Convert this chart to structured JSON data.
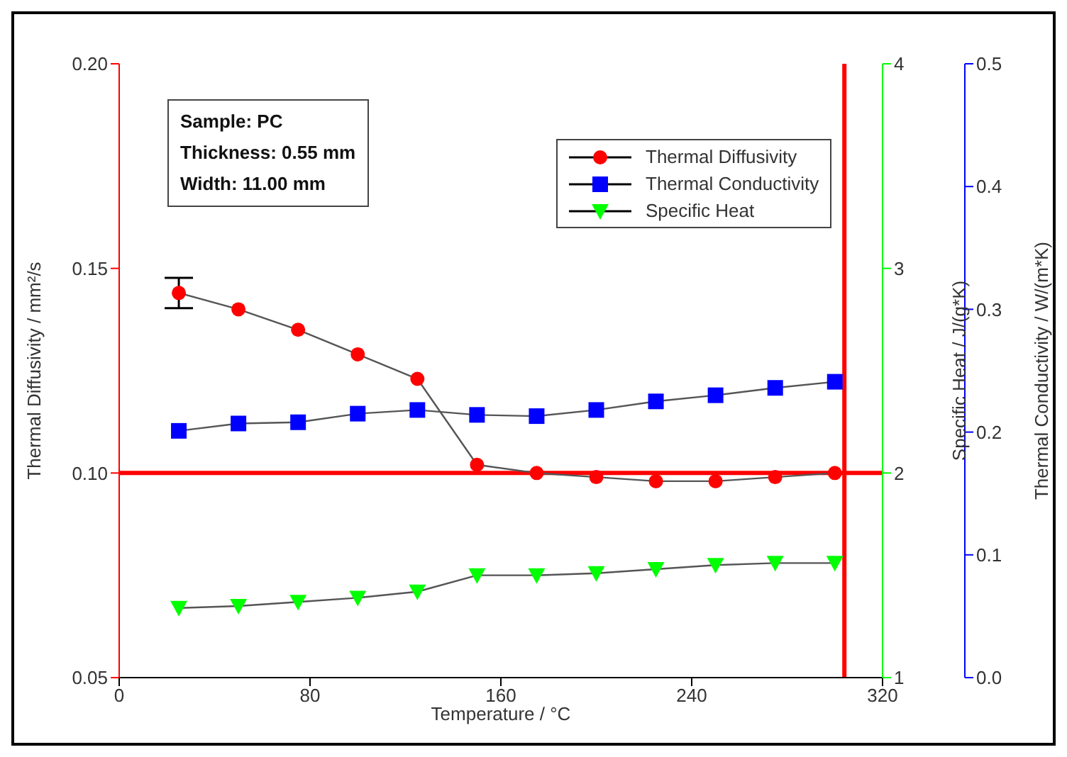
{
  "chart_data": {
    "type": "line",
    "xlabel": "Temperature / °C",
    "ylabel": "Thermal Diffusivity / mm²/s",
    "y2label": "Specific Heat / J/(g*K)",
    "y3label": "Thermal Conductivity / W/(m*K)",
    "x": [
      25,
      50,
      75,
      100,
      125,
      150,
      175,
      200,
      225,
      250,
      275,
      300
    ],
    "xlim": [
      0,
      320
    ],
    "xticks": [
      0,
      80,
      160,
      240,
      320
    ],
    "ylim": [
      0.05,
      0.2
    ],
    "yticks": [
      {
        "value": 0.05,
        "label": "0.05"
      },
      {
        "value": 0.1,
        "label": "0.10"
      },
      {
        "value": 0.15,
        "label": "0.15"
      },
      {
        "value": 0.2,
        "label": "0.20"
      }
    ],
    "y2lim": [
      1,
      4
    ],
    "y2ticks": [
      1,
      2,
      3,
      4
    ],
    "y3lim": [
      0,
      0.5
    ],
    "y3ticks": [
      {
        "value": 0,
        "label": "0.0"
      },
      0.1,
      0.2,
      0.3,
      0.4,
      0.5
    ],
    "series": [
      {
        "name": "Thermal Diffusivity",
        "color": "#ff0000",
        "marker": "circle",
        "values": [
          0.144,
          0.14,
          0.135,
          0.129,
          0.123,
          0.102,
          0.1,
          0.099,
          0.098,
          0.098,
          0.099,
          0.1
        ],
        "errors": [
          0.0037,
          null,
          null,
          null,
          null,
          null,
          null,
          null,
          null,
          null,
          null,
          null
        ]
      },
      {
        "name": "Thermal Conductivity",
        "color": "#0000ff",
        "marker": "square",
        "axis": "y3",
        "values": [
          0.201,
          0.207,
          0.208,
          0.215,
          0.218,
          0.214,
          0.213,
          0.218,
          0.225,
          0.23,
          0.236,
          0.241
        ]
      },
      {
        "name": "Specific Heat",
        "color": "#00ff00",
        "marker": "triangle",
        "axis": "y2",
        "values": [
          1.34,
          1.35,
          1.37,
          1.39,
          1.42,
          1.5,
          1.5,
          1.51,
          1.53,
          1.55,
          1.56,
          1.56
        ]
      }
    ],
    "ref_lines": [
      {
        "axis": "y",
        "value": 0.1,
        "color": "#ff0000"
      },
      {
        "axis": "x",
        "value": 304,
        "color": "#ff0000"
      }
    ],
    "annotations": [
      "Sample: PC",
      "Thickness: 0.55 mm",
      "Width: 11.00 mm"
    ],
    "legend": "top right",
    "grid": false
  }
}
